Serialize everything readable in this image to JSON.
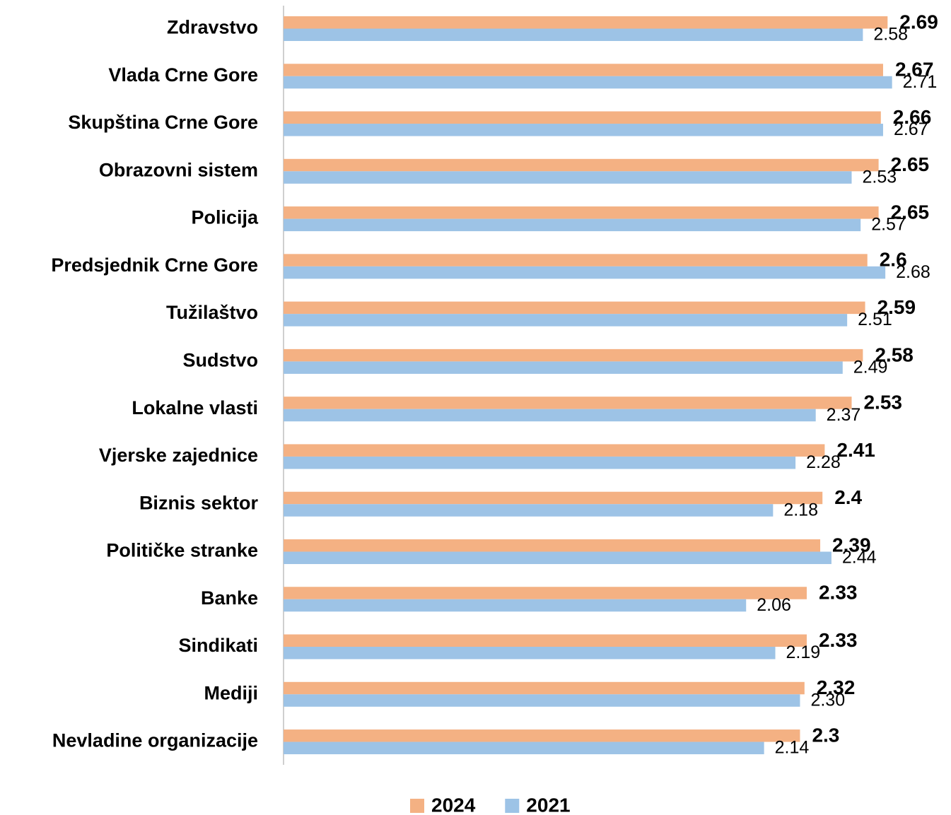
{
  "chart_data": {
    "type": "barh",
    "categories": [
      "Zdravstvo",
      "Vlada Crne Gore",
      "Skupština Crne Gore",
      "Obrazovni sistem",
      "Policija",
      "Predsjednik Crne Gore",
      "Tužilaštvo",
      "Sudstvo",
      "Lokalne vlasti",
      "Vjerske zajednice",
      "Biznis sektor",
      "Političke stranke",
      "Banke",
      "Sindikati",
      "Mediji",
      "Nevladine organizacije"
    ],
    "series": [
      {
        "name": "2024",
        "color": "#f4b183",
        "values": [
          2.69,
          2.67,
          2.66,
          2.65,
          2.65,
          2.6,
          2.59,
          2.58,
          2.53,
          2.41,
          2.4,
          2.39,
          2.33,
          2.33,
          2.32,
          2.3
        ]
      },
      {
        "name": "2021",
        "color": "#9dc3e6",
        "values": [
          2.58,
          2.71,
          2.67,
          2.53,
          2.57,
          2.68,
          2.51,
          2.49,
          2.37,
          2.28,
          2.18,
          2.44,
          2.06,
          2.19,
          2.3,
          2.14
        ],
        "value_labels": [
          "2.58",
          "2.71",
          "2.67",
          "2.53",
          "2.57",
          "2.68",
          "2.51",
          "2.49",
          "2.37",
          "2.28",
          "2.18",
          "2.44",
          "2.06",
          "2.19",
          "2.30",
          "2.14"
        ]
      }
    ],
    "xlim": [
      0,
      2.9
    ],
    "legend": "bottom"
  }
}
